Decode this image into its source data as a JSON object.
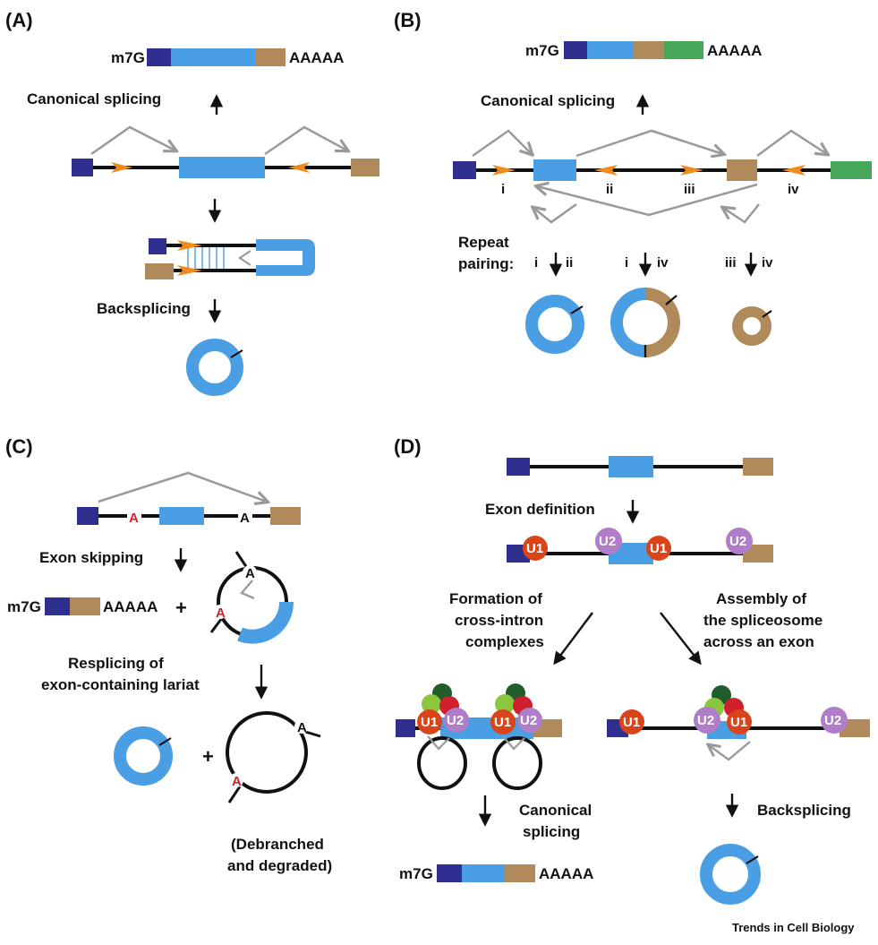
{
  "colors": {
    "exon_dark": "#2e2f8f",
    "exon_blue": "#4a9ee3",
    "exon_tan": "#b08a5a",
    "exon_green": "#48a859",
    "repeat_orange": "#f08a1c",
    "arrow_gray": "#9a9a9a",
    "line_black": "#111111",
    "branch_red": "#d21f2b",
    "u1": "#d9451a",
    "u2": "#b07ec8",
    "factor_darkgreen": "#1f5d2a",
    "factor_lightgreen": "#8cc63f",
    "factor_red": "#d0202e"
  },
  "common": {
    "cap": "m7G",
    "polyA": "AAAAA",
    "plus": "+"
  },
  "panelA": {
    "letter": "(A)",
    "canonical": "Canonical splicing",
    "backsplicing": "Backsplicing"
  },
  "panelB": {
    "letter": "(B)",
    "canonical": "Canonical splicing",
    "repeat1": "Repeat",
    "repeat2": "pairing:",
    "r_i": "i",
    "r_ii": "ii",
    "r_iii": "iii",
    "r_iv": "iv"
  },
  "panelC": {
    "letter": "(C)",
    "exon_skipping": "Exon skipping",
    "respl1": "Resplicing of",
    "respl2": "exon-containing lariat",
    "branch": "A",
    "debr1": "(Debranched",
    "debr2": "and degraded)"
  },
  "panelD": {
    "letter": "(D)",
    "exon_def": "Exon definition",
    "u1": "U1",
    "u2": "U2",
    "formation1": "Formation of",
    "formation2": "cross-intron",
    "formation3": "complexes",
    "assembly1": "Assembly of",
    "assembly2": "the spliceosome",
    "assembly3": "across an exon",
    "canon1": "Canonical",
    "canon2": "splicing",
    "backsplicing": "Backsplicing"
  },
  "credit": "Trends in Cell Biology"
}
